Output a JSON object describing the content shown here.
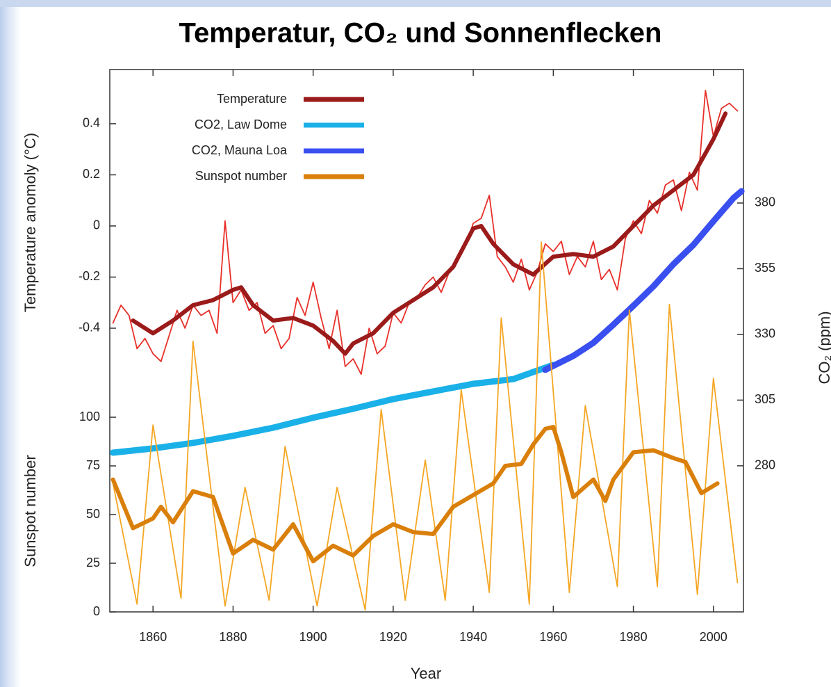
{
  "chart_data": {
    "type": "line",
    "title": "Temperatur, CO₂ und Sonnenflecken",
    "xlabel": "Year",
    "ylabel": "Temperature anomoly (°C)",
    "y2label": "CO₂ (ppm)",
    "y3label": "Sunspot number",
    "xlim": [
      1849.2,
      2007.5
    ],
    "xticks": [
      1860,
      1880,
      1900,
      1920,
      1940,
      1960,
      1980,
      2000
    ],
    "ylim": [
      -1.51,
      0.612
    ],
    "yticks": [
      0.4,
      0.2,
      0,
      -0.2,
      -0.4
    ],
    "y2lim": [
      224.4,
      430.8
    ],
    "y2ticks": [
      380,
      355,
      330,
      305,
      280
    ],
    "y3lim": [
      0,
      278.6
    ],
    "y3ticks": [
      100,
      75,
      50,
      25,
      0
    ],
    "legend": "upper left",
    "series": [
      {
        "name": "Temperature",
        "color": "#e8302a",
        "axis": "y",
        "x": [
          1850,
          1852,
          1854,
          1856,
          1858,
          1860,
          1862,
          1864,
          1866,
          1868,
          1870,
          1872,
          1874,
          1876,
          1878,
          1880,
          1882,
          1884,
          1886,
          1888,
          1890,
          1892,
          1894,
          1896,
          1898,
          1900,
          1902,
          1904,
          1906,
          1908,
          1910,
          1912,
          1914,
          1916,
          1918,
          1920,
          1922,
          1924,
          1926,
          1928,
          1930,
          1932,
          1934,
          1936,
          1938,
          1940,
          1942,
          1944,
          1946,
          1948,
          1950,
          1952,
          1954,
          1956,
          1958,
          1960,
          1962,
          1964,
          1966,
          1968,
          1970,
          1972,
          1974,
          1976,
          1978,
          1980,
          1982,
          1984,
          1986,
          1988,
          1990,
          1992,
          1994,
          1996,
          1998,
          2000,
          2002,
          2004,
          2006
        ],
        "values": [
          -0.38,
          -0.31,
          -0.35,
          -0.48,
          -0.44,
          -0.5,
          -0.53,
          -0.43,
          -0.33,
          -0.4,
          -0.31,
          -0.35,
          -0.33,
          -0.42,
          0.02,
          -0.3,
          -0.25,
          -0.33,
          -0.3,
          -0.42,
          -0.39,
          -0.48,
          -0.44,
          -0.28,
          -0.35,
          -0.22,
          -0.36,
          -0.48,
          -0.33,
          -0.55,
          -0.52,
          -0.58,
          -0.4,
          -0.5,
          -0.47,
          -0.34,
          -0.38,
          -0.3,
          -0.28,
          -0.23,
          -0.2,
          -0.26,
          -0.18,
          -0.14,
          -0.08,
          0.01,
          0.03,
          0.12,
          -0.12,
          -0.16,
          -0.22,
          -0.13,
          -0.25,
          -0.18,
          -0.07,
          -0.1,
          -0.06,
          -0.19,
          -0.12,
          -0.16,
          -0.06,
          -0.21,
          -0.17,
          -0.25,
          -0.05,
          0.02,
          -0.03,
          0.1,
          0.05,
          0.16,
          0.18,
          0.06,
          0.21,
          0.14,
          0.53,
          0.35,
          0.46,
          0.48,
          0.45
        ],
        "smooth_color": "#9b1a1a",
        "smooth_x": [
          1855,
          1860,
          1865,
          1870,
          1875,
          1880,
          1882,
          1885,
          1890,
          1895,
          1900,
          1905,
          1908,
          1910,
          1915,
          1920,
          1925,
          1930,
          1935,
          1940,
          1942,
          1945,
          1950,
          1955,
          1960,
          1965,
          1970,
          1975,
          1980,
          1985,
          1990,
          1995,
          2000,
          2003
        ],
        "smooth_values": [
          -0.37,
          -0.42,
          -0.37,
          -0.31,
          -0.29,
          -0.25,
          -0.24,
          -0.31,
          -0.37,
          -0.36,
          -0.39,
          -0.45,
          -0.5,
          -0.46,
          -0.42,
          -0.34,
          -0.29,
          -0.24,
          -0.16,
          -0.01,
          0,
          -0.07,
          -0.15,
          -0.19,
          -0.12,
          -0.11,
          -0.12,
          -0.08,
          0,
          0.08,
          0.14,
          0.2,
          0.34,
          0.44
        ]
      },
      {
        "name": "CO2, Law Dome",
        "color": "#1ab0e8",
        "axis": "y2",
        "x": [
          1850,
          1860,
          1870,
          1880,
          1890,
          1900,
          1910,
          1920,
          1930,
          1940,
          1950,
          1955,
          1960
        ],
        "values": [
          285,
          286.6,
          288.7,
          291.4,
          294.5,
          298.3,
          301.7,
          305.4,
          308.3,
          311.2,
          313,
          315.7,
          318.4
        ]
      },
      {
        "name": "CO2, Mauna Loa",
        "color": "#3a4ff0",
        "axis": "y2",
        "x": [
          1958,
          1965,
          1970,
          1975,
          1980,
          1985,
          1990,
          1995,
          2000,
          2005,
          2007
        ],
        "values": [
          316.5,
          321.8,
          326.8,
          333.7,
          340.9,
          348.3,
          356.7,
          364.1,
          373.1,
          381.9,
          384.5
        ]
      },
      {
        "name": "Sunspot number",
        "color": "#f5a623",
        "axis": "y3",
        "x": [
          1850,
          1856,
          1860,
          1867,
          1870,
          1878,
          1883,
          1889,
          1893,
          1901,
          1906,
          1913,
          1917,
          1923,
          1928,
          1933,
          1937,
          1944,
          1947,
          1954,
          1957,
          1964,
          1968,
          1976,
          1979,
          1986,
          1989,
          1996,
          2000,
          2006
        ],
        "values": [
          66,
          4,
          96,
          7,
          139,
          3,
          64,
          6,
          85,
          3,
          64,
          1,
          104,
          6,
          78,
          6,
          114,
          10,
          151,
          4,
          190,
          10,
          106,
          13,
          155,
          13,
          158,
          9,
          120,
          15
        ],
        "smooth_color": "#d97f0a",
        "smooth_x": [
          1850,
          1855,
          1860,
          1862,
          1865,
          1870,
          1875,
          1880,
          1885,
          1890,
          1895,
          1900,
          1905,
          1910,
          1915,
          1920,
          1925,
          1930,
          1935,
          1940,
          1945,
          1948,
          1952,
          1955,
          1958,
          1960,
          1962,
          1965,
          1970,
          1973,
          1975,
          1980,
          1985,
          1990,
          1993,
          1997,
          2001
        ],
        "smooth_values": [
          68,
          43,
          48,
          54,
          46,
          62,
          59,
          30,
          37,
          32,
          45,
          26,
          34,
          29,
          39,
          45,
          41,
          40,
          54,
          60,
          66,
          75,
          76,
          86,
          94,
          95,
          82,
          59,
          68,
          57,
          68,
          82,
          83,
          79,
          77,
          61,
          66
        ]
      }
    ]
  }
}
